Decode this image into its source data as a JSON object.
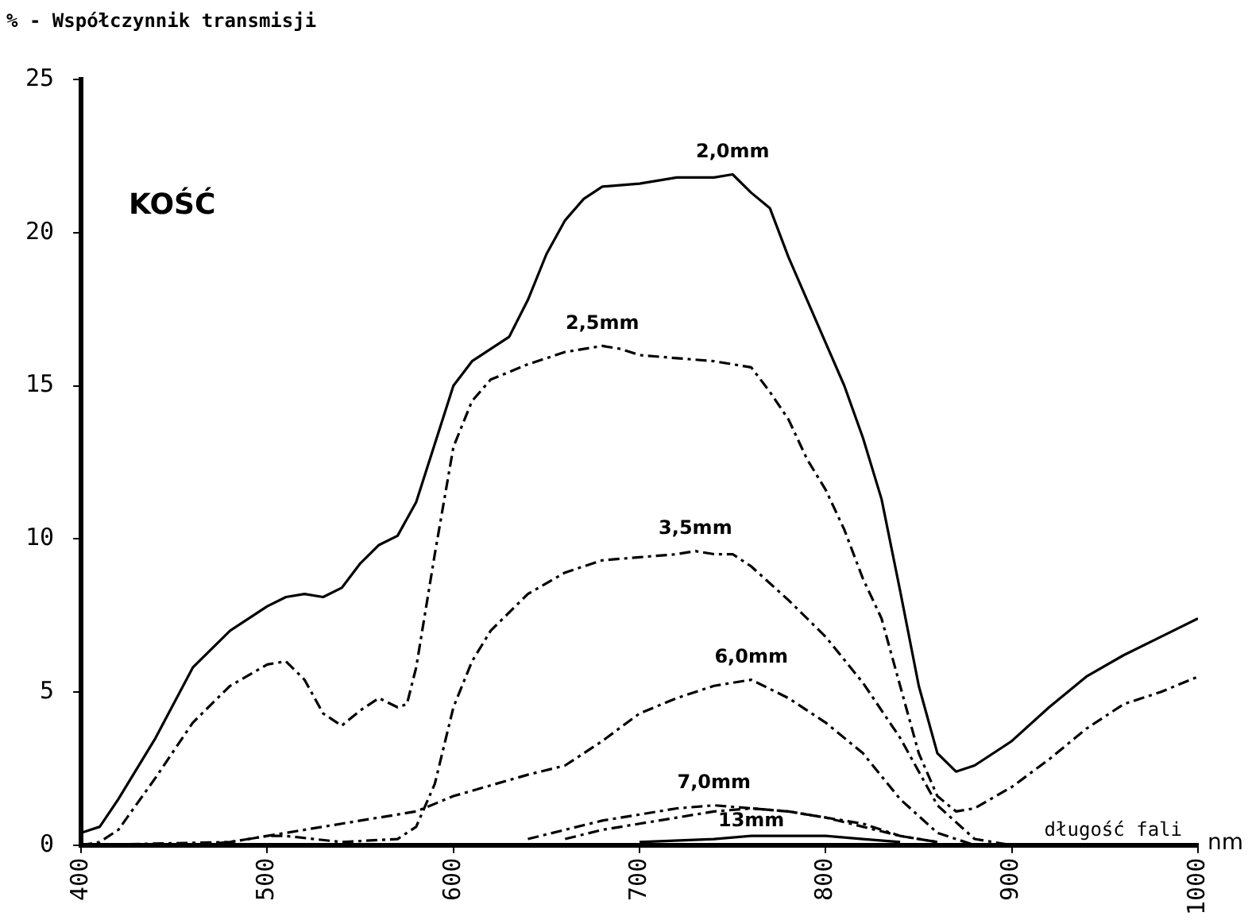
{
  "chart_data": {
    "type": "line",
    "title": "KOŚĆ",
    "ylabel": "% - Współczynnik transmisji",
    "xlabel": "długość fali",
    "xlim": [
      400,
      1000
    ],
    "xticks": [
      400,
      500,
      600,
      700,
      800,
      900,
      1000
    ],
    "ylim": [
      0,
      25
    ],
    "yticks": [
      0,
      5,
      10,
      15,
      20,
      25
    ],
    "grid": false,
    "legend": false,
    "marker": "none",
    "series": [
      {
        "name": "2,0mm",
        "color": "#000000",
        "line_style": "solid",
        "x": [
          400,
          410,
          420,
          440,
          460,
          480,
          500,
          510,
          520,
          530,
          540,
          550,
          560,
          570,
          580,
          590,
          600,
          610,
          630,
          640,
          650,
          660,
          670,
          680,
          700,
          720,
          740,
          750,
          760,
          770,
          780,
          790,
          800,
          810,
          820,
          830,
          840,
          850,
          860,
          870,
          880,
          900,
          920,
          940,
          960,
          980,
          1000
        ],
        "values": [
          0.4,
          0.6,
          1.5,
          3.5,
          5.8,
          7.0,
          7.8,
          8.1,
          8.2,
          8.1,
          8.4,
          9.2,
          9.8,
          10.1,
          11.2,
          13.1,
          15.0,
          15.8,
          16.6,
          17.8,
          19.3,
          20.4,
          21.1,
          21.5,
          21.6,
          21.8,
          21.8,
          21.9,
          21.3,
          20.8,
          19.2,
          17.8,
          16.4,
          15.0,
          13.3,
          11.3,
          8.3,
          5.2,
          3.0,
          2.4,
          2.6,
          3.4,
          4.5,
          5.5,
          6.2,
          6.8,
          7.4
        ]
      },
      {
        "name": "2,5mm",
        "color": "#000000",
        "line_style": "dashed",
        "x": [
          400,
          410,
          420,
          440,
          460,
          480,
          500,
          510,
          520,
          530,
          540,
          550,
          560,
          570,
          575,
          580,
          590,
          600,
          610,
          620,
          640,
          660,
          680,
          690,
          700,
          720,
          740,
          760,
          770,
          780,
          790,
          800,
          810,
          820,
          830,
          840,
          850,
          860,
          870,
          880,
          900,
          920,
          940,
          960,
          980,
          1000
        ],
        "values": [
          0,
          0.1,
          0.5,
          2.2,
          4.0,
          5.2,
          5.9,
          6.0,
          5.4,
          4.3,
          3.9,
          4.4,
          4.8,
          4.5,
          4.6,
          5.8,
          9.5,
          13.0,
          14.5,
          15.2,
          15.7,
          16.1,
          16.3,
          16.2,
          16.0,
          15.9,
          15.8,
          15.6,
          14.8,
          13.9,
          12.6,
          11.6,
          10.3,
          8.7,
          7.4,
          5.2,
          3.0,
          1.6,
          1.1,
          1.2,
          1.9,
          2.8,
          3.8,
          4.6,
          5.0,
          5.5
        ]
      },
      {
        "name": "3,5mm",
        "color": "#000000",
        "line_style": "dashed",
        "x": [
          400,
          480,
          500,
          510,
          540,
          570,
          580,
          590,
          600,
          610,
          620,
          640,
          660,
          680,
          700,
          720,
          730,
          740,
          750,
          760,
          780,
          800,
          820,
          840,
          860,
          880,
          900
        ],
        "values": [
          0,
          0.1,
          0.3,
          0.3,
          0.1,
          0.2,
          0.6,
          2.0,
          4.5,
          6.0,
          7.0,
          8.2,
          8.9,
          9.3,
          9.4,
          9.5,
          9.6,
          9.5,
          9.5,
          9.1,
          8.0,
          6.8,
          5.3,
          3.5,
          1.3,
          0.2,
          0
        ]
      },
      {
        "name": "6,0mm",
        "color": "#000000",
        "line_style": "dashed",
        "x": [
          460,
          480,
          500,
          540,
          580,
          600,
          640,
          660,
          680,
          700,
          720,
          740,
          760,
          780,
          800,
          820,
          840,
          860,
          880
        ],
        "values": [
          0,
          0.1,
          0.3,
          0.7,
          1.1,
          1.6,
          2.3,
          2.6,
          3.4,
          4.3,
          4.8,
          5.2,
          5.4,
          4.8,
          4.0,
          3.0,
          1.5,
          0.4,
          0
        ]
      },
      {
        "name": "7,0mm",
        "color": "#000000",
        "line_style": "dashed",
        "x": [
          640,
          660,
          680,
          700,
          720,
          740,
          760,
          780,
          800,
          820,
          840,
          860
        ],
        "values": [
          0.2,
          0.5,
          0.8,
          1.0,
          1.2,
          1.3,
          1.2,
          1.1,
          0.9,
          0.6,
          0.3,
          0.1
        ]
      },
      {
        "color": "#000000",
        "line_style": "dashed",
        "x": [
          660,
          680,
          700,
          720,
          740,
          760,
          780,
          800,
          820,
          840,
          860
        ],
        "values": [
          0.2,
          0.5,
          0.7,
          0.9,
          1.1,
          1.2,
          1.1,
          0.9,
          0.7,
          0.3,
          0.1
        ]
      },
      {
        "name": "13mm",
        "color": "#000000",
        "line_style": "solid",
        "x": [
          700,
          740,
          760,
          780,
          800,
          820,
          840
        ],
        "values": [
          0.1,
          0.2,
          0.3,
          0.3,
          0.3,
          0.2,
          0.1
        ]
      }
    ],
    "annotations": [
      "nm"
    ]
  }
}
